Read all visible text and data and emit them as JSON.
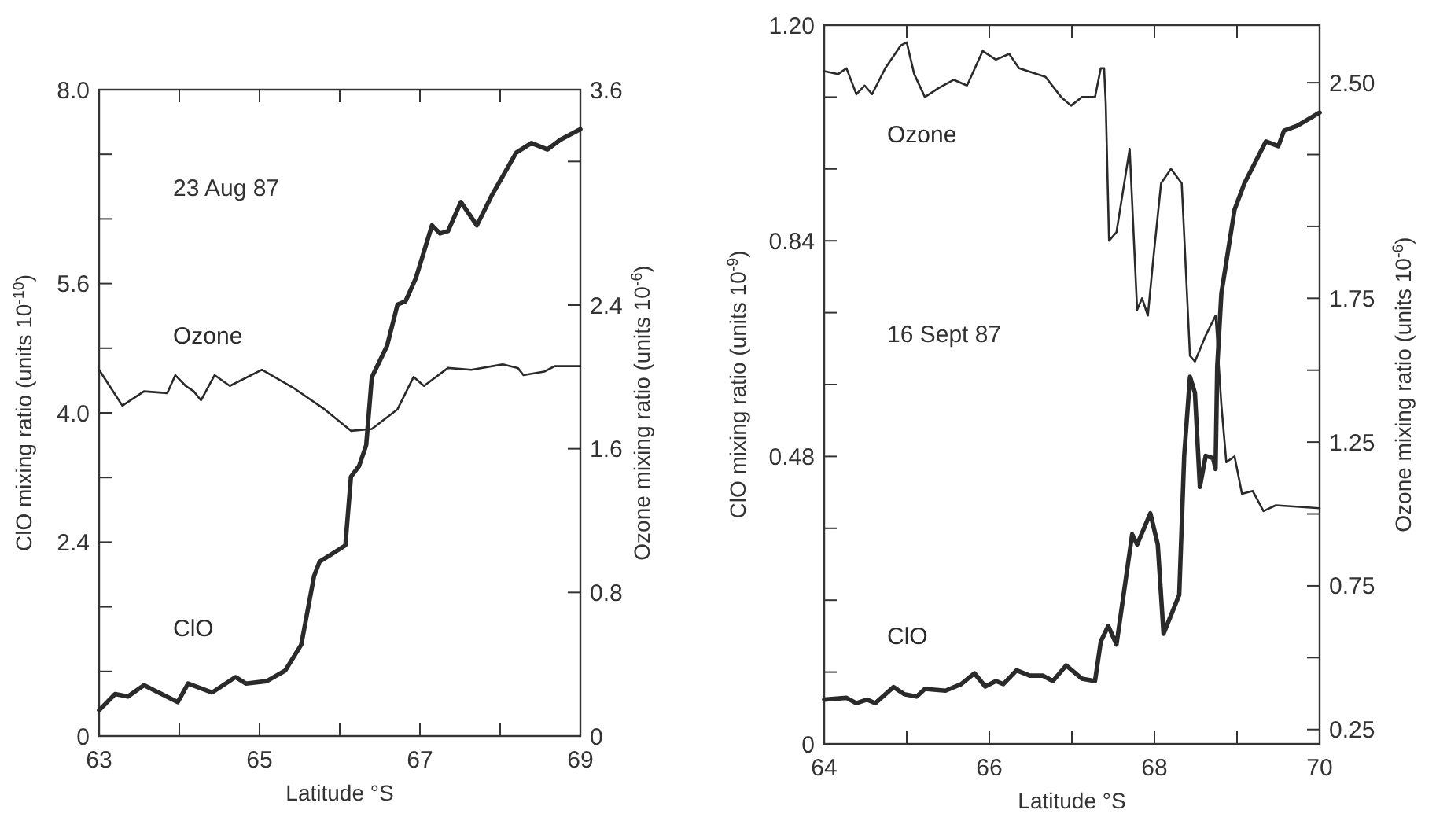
{
  "chart_data": [
    {
      "type": "line",
      "xlabel": "Latitude °S",
      "ylabel": "ClO mixing ratio (units 10$^{-10}$)",
      "y2label": "Ozone mixing ratio (units 10$^{-6}$)",
      "annotations": [
        "23 Aug 87"
      ],
      "xlim": [
        63,
        69
      ],
      "xticks": [
        63,
        {
          "value": 64,
          "label": null
        },
        65,
        {
          "value": 66,
          "label": null
        },
        67,
        {
          "value": 68,
          "label": null
        },
        69
      ],
      "ylim": [
        0,
        8
      ],
      "yticks": [
        0,
        {
          "value": 0.8,
          "label": null
        },
        {
          "value": 1.6,
          "label": null
        },
        2.4,
        {
          "value": 3.2,
          "label": null
        },
        {
          "value": 4,
          "label": "4.0"
        },
        {
          "value": 4.8,
          "label": null
        },
        5.6,
        {
          "value": 6.4,
          "label": null
        },
        {
          "value": 7.2,
          "label": null
        },
        {
          "value": 8,
          "label": "8.0"
        }
      ],
      "y2lim": [
        0,
        3.6
      ],
      "y2ticks": [
        0,
        0.8,
        1.6,
        2.4,
        {
          "value": 3.2,
          "label": null
        },
        3.6
      ],
      "series": [
        {
          "name": "ClO",
          "color": "#2a2a2a",
          "x": [
            63.0,
            63.2,
            63.36,
            63.56,
            63.72,
            63.98,
            64.11,
            64.41,
            64.7,
            64.83,
            65.09,
            65.32,
            65.52,
            65.68,
            65.75,
            65.88,
            66.07,
            66.14,
            66.24,
            66.33,
            66.4,
            66.59,
            66.72,
            66.82,
            66.95,
            67.15,
            67.25,
            67.35,
            67.51,
            67.71,
            67.9,
            68.2,
            68.39,
            68.59,
            68.75,
            69.0
          ],
          "values": [
            0.32,
            0.52,
            0.49,
            0.63,
            0.55,
            0.42,
            0.65,
            0.54,
            0.73,
            0.65,
            0.68,
            0.81,
            1.13,
            1.98,
            2.16,
            2.24,
            2.36,
            3.21,
            3.34,
            3.6,
            4.44,
            4.83,
            5.34,
            5.38,
            5.67,
            6.32,
            6.22,
            6.25,
            6.61,
            6.32,
            6.7,
            7.22,
            7.34,
            7.26,
            7.38,
            7.51
          ]
        },
        {
          "name": "Ozone",
          "color": "#2a2a2a",
          "axis": "y2",
          "x": [
            63.0,
            63.29,
            63.56,
            63.85,
            63.95,
            64.08,
            64.18,
            64.27,
            64.44,
            64.63,
            65.03,
            65.42,
            65.81,
            66.14,
            66.4,
            66.72,
            66.92,
            67.05,
            67.35,
            67.64,
            68.03,
            68.22,
            68.29,
            68.55,
            68.68,
            69.0
          ],
          "values": [
            2.04,
            1.84,
            1.92,
            1.91,
            2.01,
            1.95,
            1.92,
            1.87,
            2.01,
            1.95,
            2.04,
            1.94,
            1.82,
            1.7,
            1.71,
            1.82,
            2.0,
            1.95,
            2.05,
            2.04,
            2.07,
            2.05,
            2.01,
            2.03,
            2.06,
            2.06
          ]
        }
      ]
    },
    {
      "type": "line",
      "xlabel": "Latitude °S",
      "ylabel": "ClO mixing ratio (units 10$^{-9}$)",
      "y2label": "Ozone mixing ratio (units 10$^{-6}$)",
      "annotations": [
        "16 Sept 87"
      ],
      "xlim": [
        64,
        70
      ],
      "xticks": [
        64,
        {
          "value": 65,
          "label": null
        },
        66,
        {
          "value": 67,
          "label": null
        },
        68,
        {
          "value": 69,
          "label": null
        },
        70
      ],
      "ylim": [
        0,
        1.2
      ],
      "yticks": [
        0,
        {
          "value": 0.12,
          "label": null
        },
        {
          "value": 0.24,
          "label": null
        },
        {
          "value": 0.36,
          "label": null
        },
        0.48,
        {
          "value": 0.6,
          "label": null
        },
        {
          "value": 0.72,
          "label": null
        },
        0.84,
        {
          "value": 0.96,
          "label": null
        },
        {
          "value": 1.08,
          "label": null
        },
        {
          "value": 1.2,
          "label": "1.20"
        }
      ],
      "y2lim": [
        0.2,
        2.7
      ],
      "y2ticks": [
        0.25,
        {
          "value": 0.5,
          "label": null
        },
        0.75,
        {
          "value": 1,
          "label": null
        },
        1.25,
        {
          "value": 1.5,
          "label": null
        },
        1.75,
        {
          "value": 2,
          "label": null
        },
        {
          "value": 2.25,
          "label": null
        },
        {
          "value": 2.5,
          "label": "2.50"
        }
      ],
      "series": [
        {
          "name": "ClO",
          "color": "#2a2a2a",
          "x": [
            64.0,
            64.27,
            64.39,
            64.52,
            64.62,
            64.84,
            64.97,
            65.12,
            65.22,
            65.47,
            65.66,
            65.82,
            65.95,
            66.08,
            66.17,
            66.33,
            66.49,
            66.65,
            66.77,
            66.93,
            67.12,
            67.28,
            67.35,
            67.44,
            67.54,
            67.73,
            67.79,
            67.95,
            68.04,
            68.11,
            68.3,
            68.36,
            68.43,
            68.49,
            68.55,
            68.62,
            68.71,
            68.74,
            68.76,
            68.81,
            68.97,
            69.09,
            69.35,
            69.5,
            69.57,
            69.73,
            70.0
          ],
          "values": [
            0.074,
            0.077,
            0.068,
            0.074,
            0.068,
            0.095,
            0.083,
            0.079,
            0.092,
            0.089,
            0.1,
            0.118,
            0.096,
            0.105,
            0.1,
            0.123,
            0.114,
            0.114,
            0.105,
            0.131,
            0.109,
            0.105,
            0.171,
            0.197,
            0.166,
            0.35,
            0.333,
            0.385,
            0.333,
            0.184,
            0.249,
            0.481,
            0.613,
            0.586,
            0.429,
            0.481,
            0.477,
            0.459,
            0.63,
            0.752,
            0.892,
            0.936,
            1.006,
            0.998,
            1.024,
            1.032,
            1.054
          ]
        },
        {
          "name": "Ozone",
          "color": "#2a2a2a",
          "axis": "y2",
          "x": [
            64.0,
            64.17,
            64.27,
            64.39,
            64.49,
            64.58,
            64.74,
            64.93,
            65.0,
            65.09,
            65.22,
            65.38,
            65.57,
            65.73,
            65.92,
            66.08,
            66.24,
            66.36,
            66.68,
            66.87,
            66.99,
            67.12,
            67.28,
            67.35,
            67.39,
            67.41,
            67.45,
            67.54,
            67.7,
            67.79,
            67.85,
            67.92,
            67.98,
            68.08,
            68.2,
            68.33,
            68.43,
            68.49,
            68.62,
            68.74,
            68.81,
            68.87,
            68.97,
            69.06,
            69.19,
            69.32,
            69.47,
            70.0
          ],
          "values": [
            2.54,
            2.53,
            2.55,
            2.46,
            2.49,
            2.46,
            2.55,
            2.63,
            2.64,
            2.53,
            2.45,
            2.48,
            2.51,
            2.49,
            2.61,
            2.58,
            2.6,
            2.55,
            2.52,
            2.45,
            2.42,
            2.45,
            2.45,
            2.55,
            2.55,
            2.43,
            1.95,
            1.98,
            2.27,
            1.71,
            1.75,
            1.69,
            1.87,
            2.15,
            2.2,
            2.15,
            1.55,
            1.53,
            1.62,
            1.69,
            1.38,
            1.18,
            1.2,
            1.07,
            1.08,
            1.01,
            1.03,
            1.02
          ]
        }
      ]
    }
  ]
}
